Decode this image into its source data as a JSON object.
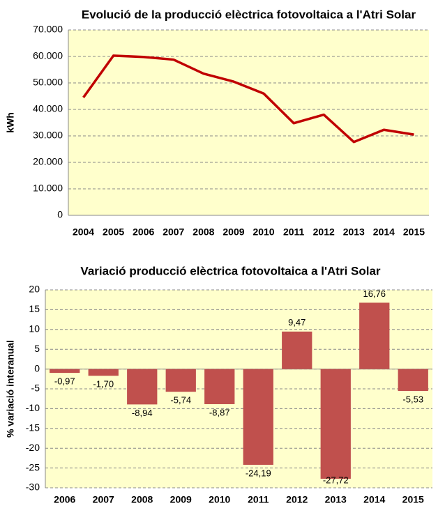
{
  "chart_data": [
    {
      "type": "line",
      "title": "Evolució de la producció elèctrica fotovoltaica a l'Atri Solar",
      "ylabel": "kWh",
      "categories": [
        "2004",
        "2005",
        "2006",
        "2007",
        "2008",
        "2009",
        "2010",
        "2011",
        "2012",
        "2013",
        "2014",
        "2015"
      ],
      "values": [
        44500,
        60300,
        59800,
        58800,
        53500,
        50500,
        46000,
        34800,
        38000,
        27700,
        32300,
        30500
      ],
      "color": "#c00000",
      "ylim": [
        0,
        70000
      ],
      "yticks": [
        0,
        {
          "value": 10000,
          "label": "10.000"
        },
        {
          "value": 20000,
          "label": "20.000"
        },
        {
          "value": 30000,
          "label": "30.000"
        },
        {
          "value": 40000,
          "label": "40.000"
        },
        {
          "value": 50000,
          "label": "50.000"
        },
        {
          "value": 60000,
          "label": "60.000"
        },
        {
          "value": 70000,
          "label": "70.000"
        }
      ],
      "grid": true
    },
    {
      "type": "bar",
      "title": "Variació producció elèctrica fotovoltaica a l'Atri Solar",
      "ylabel": "% variació interanual",
      "categories": [
        "2006",
        "2007",
        "2008",
        "2009",
        "2010",
        "2011",
        "2012",
        "2013",
        "2014",
        "2015"
      ],
      "values": [
        -0.97,
        -1.7,
        -8.94,
        -5.74,
        -8.87,
        -24.19,
        9.47,
        -27.72,
        16.76,
        -5.53
      ],
      "value_labels": [
        "-0,97",
        "-1,70",
        "-8,94",
        "-5,74",
        "-8,87",
        "-24,19",
        "9,47",
        "-27,72",
        "16,76",
        "-5,53"
      ],
      "color": "#c0504d",
      "ylim": [
        -30,
        20
      ],
      "yticks": [
        -30,
        -25,
        -20,
        -15,
        -10,
        -5,
        0,
        5,
        10,
        15,
        20
      ],
      "grid": true
    }
  ]
}
